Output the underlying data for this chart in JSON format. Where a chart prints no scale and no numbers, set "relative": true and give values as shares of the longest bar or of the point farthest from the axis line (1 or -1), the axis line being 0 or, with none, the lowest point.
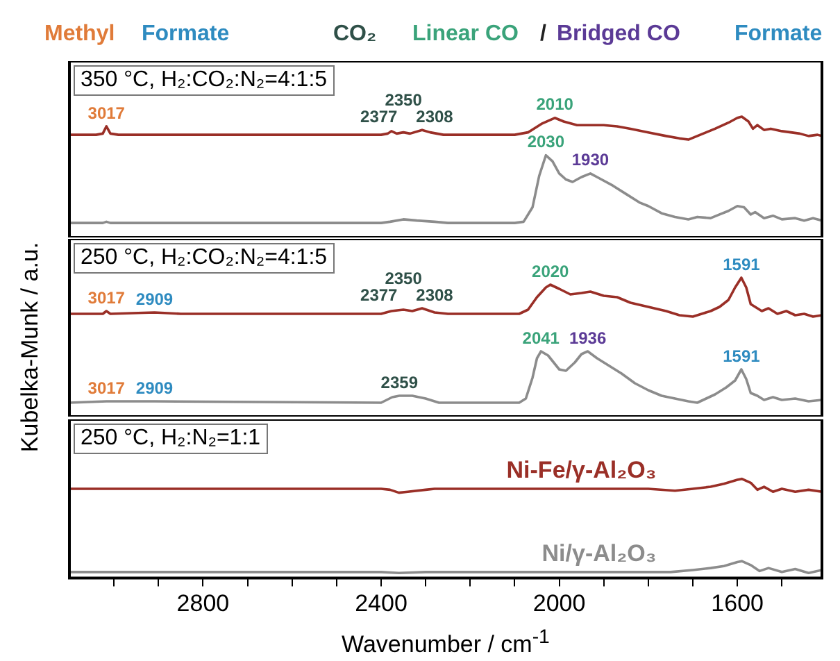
{
  "chart_data": [
    {
      "type": "line",
      "relative": true,
      "title": "350 °C, H₂:CO₂:N₂=4:1:5",
      "xlim": [
        3100,
        1410
      ],
      "tick_labels": false,
      "legend": false,
      "annotations": [
        "Methyl",
        "Formate",
        "CO₂",
        "Linear CO",
        "/",
        "Bridged CO",
        "Formate",
        {
          "text": "3017",
          "x": 3017,
          "y": 0.92
        },
        {
          "text": "2377",
          "x": 2377,
          "y": 0.88
        },
        {
          "text": "2350",
          "x": 2350,
          "y": 0.87
        },
        {
          "text": "2308",
          "x": 2308,
          "y": 0.89
        },
        {
          "text": "2010",
          "x": 2010,
          "y": 0.99
        },
        {
          "text": "2030",
          "x": 2030,
          "y": 0.68
        },
        {
          "text": "1930",
          "x": 1930,
          "y": 0.53
        }
      ],
      "series": [
        {
          "color": "#9a2f27",
          "x": [
            3100,
            3040,
            3025,
            3017,
            3008,
            2990,
            2900,
            2700,
            2500,
            2400,
            2385,
            2377,
            2365,
            2350,
            2335,
            2308,
            2290,
            2260,
            2100,
            2070,
            2040,
            2010,
            1990,
            1960,
            1930,
            1900,
            1870,
            1840,
            1800,
            1760,
            1730,
            1710,
            1690,
            1670,
            1650,
            1620,
            1600,
            1590,
            1575,
            1565,
            1555,
            1540,
            1525,
            1500,
            1480,
            1460,
            1440,
            1420,
            1410
          ],
          "values": [
            0.85,
            0.85,
            0.86,
            0.92,
            0.86,
            0.85,
            0.85,
            0.85,
            0.85,
            0.85,
            0.86,
            0.88,
            0.86,
            0.87,
            0.86,
            0.89,
            0.87,
            0.85,
            0.85,
            0.87,
            0.94,
            0.99,
            0.96,
            0.93,
            0.93,
            0.93,
            0.92,
            0.9,
            0.87,
            0.84,
            0.82,
            0.81,
            0.84,
            0.87,
            0.9,
            0.95,
            0.99,
            1.0,
            0.96,
            0.9,
            0.93,
            0.89,
            0.9,
            0.88,
            0.87,
            0.86,
            0.84,
            0.85,
            0.84
          ]
        },
        {
          "color": "#8c8c8c",
          "x": [
            3100,
            3025,
            3017,
            3008,
            2400,
            2380,
            2350,
            2320,
            2280,
            2250,
            2100,
            2080,
            2060,
            2045,
            2030,
            2015,
            2000,
            1985,
            1970,
            1950,
            1930,
            1910,
            1880,
            1850,
            1820,
            1800,
            1770,
            1740,
            1710,
            1690,
            1660,
            1640,
            1620,
            1600,
            1585,
            1570,
            1560,
            1540,
            1520,
            1500,
            1470,
            1450,
            1430,
            1410
          ],
          "values": [
            0.12,
            0.12,
            0.13,
            0.12,
            0.12,
            0.13,
            0.15,
            0.14,
            0.13,
            0.12,
            0.12,
            0.13,
            0.25,
            0.51,
            0.68,
            0.63,
            0.53,
            0.48,
            0.46,
            0.5,
            0.53,
            0.49,
            0.43,
            0.36,
            0.29,
            0.26,
            0.2,
            0.17,
            0.15,
            0.17,
            0.16,
            0.19,
            0.22,
            0.26,
            0.25,
            0.19,
            0.21,
            0.16,
            0.18,
            0.15,
            0.16,
            0.14,
            0.16,
            0.14
          ]
        }
      ]
    },
    {
      "type": "line",
      "relative": true,
      "title": "250 °C, H₂:CO₂:N₂=4:1:5",
      "ylabel": "Kubelka-Munk / a.u.",
      "xlim": [
        3100,
        1410
      ],
      "tick_labels": false,
      "legend": false,
      "annotations": [
        {
          "text": "3017",
          "x": 3017,
          "y": 0.76
        },
        {
          "text": "2909",
          "x": 2909,
          "y": 0.75
        },
        {
          "text": "2377",
          "x": 2377,
          "y": 0.76
        },
        {
          "text": "2350",
          "x": 2350,
          "y": 0.77
        },
        {
          "text": "2308",
          "x": 2308,
          "y": 0.78
        },
        {
          "text": "2020",
          "x": 2020,
          "y": 0.95
        },
        {
          "text": "1591",
          "x": 1591,
          "y": 1.0
        },
        {
          "text": "3017",
          "x": 3017,
          "y": 0.11
        },
        {
          "text": "2909",
          "x": 2909,
          "y": 0.11
        },
        {
          "text": "2359",
          "x": 2359,
          "y": 0.15
        },
        {
          "text": "2041",
          "x": 2041,
          "y": 0.47
        },
        {
          "text": "1936",
          "x": 1936,
          "y": 0.47
        },
        {
          "text": "1591",
          "x": 1591,
          "y": 0.34
        }
      ],
      "series": [
        {
          "color": "#9a2f27",
          "x": [
            3100,
            3025,
            3017,
            3008,
            2909,
            2850,
            2400,
            2377,
            2350,
            2330,
            2308,
            2280,
            2250,
            2090,
            2070,
            2050,
            2030,
            2020,
            2000,
            1975,
            1950,
            1930,
            1900,
            1870,
            1840,
            1800,
            1760,
            1730,
            1700,
            1680,
            1660,
            1640,
            1620,
            1605,
            1591,
            1580,
            1570,
            1560,
            1545,
            1530,
            1510,
            1490,
            1470,
            1450,
            1430,
            1410
          ],
          "values": [
            0.74,
            0.74,
            0.76,
            0.74,
            0.75,
            0.74,
            0.74,
            0.76,
            0.77,
            0.76,
            0.78,
            0.75,
            0.74,
            0.74,
            0.77,
            0.86,
            0.93,
            0.95,
            0.92,
            0.88,
            0.89,
            0.9,
            0.87,
            0.86,
            0.82,
            0.79,
            0.76,
            0.73,
            0.72,
            0.74,
            0.76,
            0.79,
            0.84,
            0.93,
            1.0,
            0.93,
            0.81,
            0.79,
            0.76,
            0.78,
            0.74,
            0.76,
            0.73,
            0.74,
            0.72,
            0.73
          ]
        },
        {
          "color": "#8c8c8c",
          "x": [
            3100,
            3017,
            2909,
            2400,
            2375,
            2359,
            2330,
            2300,
            2270,
            2090,
            2075,
            2060,
            2050,
            2041,
            2025,
            2000,
            1985,
            1965,
            1950,
            1936,
            1915,
            1890,
            1860,
            1830,
            1800,
            1770,
            1740,
            1710,
            1690,
            1670,
            1650,
            1625,
            1605,
            1591,
            1580,
            1570,
            1555,
            1540,
            1520,
            1500,
            1470,
            1440,
            1410
          ],
          "values": [
            0.1,
            0.11,
            0.11,
            0.1,
            0.14,
            0.15,
            0.15,
            0.13,
            0.1,
            0.1,
            0.13,
            0.28,
            0.42,
            0.47,
            0.44,
            0.34,
            0.33,
            0.39,
            0.45,
            0.47,
            0.42,
            0.37,
            0.31,
            0.24,
            0.19,
            0.15,
            0.13,
            0.11,
            0.1,
            0.13,
            0.16,
            0.21,
            0.26,
            0.34,
            0.27,
            0.17,
            0.15,
            0.12,
            0.14,
            0.12,
            0.13,
            0.11,
            0.12
          ]
        }
      ]
    },
    {
      "type": "line",
      "relative": true,
      "title": "250 °C, H₂:N₂=1:1",
      "xlabel": "Wavenumber / cm$^{-1}$",
      "xlim": [
        3100,
        1410
      ],
      "xticks": [
        {
          "value": 3000,
          "label": null
        },
        {
          "value": 2900,
          "label": null
        },
        2800,
        {
          "value": 2700,
          "label": null
        },
        {
          "value": 2600,
          "label": null
        },
        {
          "value": 2500,
          "label": null
        },
        2400,
        {
          "value": 2300,
          "label": null
        },
        {
          "value": 2200,
          "label": null
        },
        {
          "value": 2100,
          "label": null
        },
        2000,
        {
          "value": 1900,
          "label": null
        },
        {
          "value": 1800,
          "label": null
        },
        {
          "value": 1700,
          "label": null
        },
        1600,
        {
          "value": 1500,
          "label": null
        }
      ],
      "tick_labels": "x",
      "legend": false,
      "series": [
        {
          "name": "Ni-Fe/γ-Al₂O₃",
          "color": "#9a2f27",
          "x": [
            3100,
            2400,
            2380,
            2360,
            2340,
            2300,
            2280,
            1800,
            1740,
            1700,
            1660,
            1630,
            1600,
            1590,
            1570,
            1555,
            1540,
            1520,
            1500,
            1470,
            1440,
            1410
          ],
          "values": [
            0.9,
            0.9,
            0.89,
            0.86,
            0.87,
            0.89,
            0.9,
            0.9,
            0.88,
            0.9,
            0.92,
            0.95,
            0.99,
            1.0,
            0.96,
            0.89,
            0.92,
            0.87,
            0.9,
            0.87,
            0.89,
            0.87
          ]
        },
        {
          "name": "Ni/γ-Al₂O₃",
          "color": "#8c8c8c",
          "x": [
            3100,
            2400,
            2360,
            2300,
            1750,
            1700,
            1660,
            1630,
            1600,
            1590,
            1570,
            1550,
            1530,
            1500,
            1470,
            1440,
            1410
          ],
          "values": [
            0.06,
            0.06,
            0.05,
            0.06,
            0.06,
            0.08,
            0.1,
            0.12,
            0.16,
            0.17,
            0.13,
            0.07,
            0.1,
            0.06,
            0.09,
            0.05,
            0.08
          ]
        }
      ]
    }
  ]
}
